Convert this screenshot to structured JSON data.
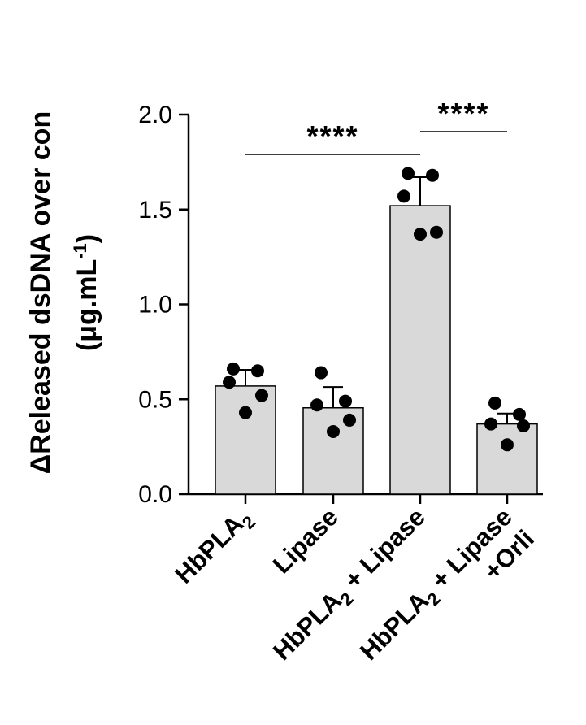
{
  "chart_data": {
    "type": "bar",
    "ylabel": {
      "line1": "ΔReleased dsDNA over con",
      "line2_prefix": "(μg.mL",
      "line2_superscript": "-1",
      "line2_suffix": ")"
    },
    "categories": [
      {
        "lines": [
          {
            "text": "HbPLA",
            "sub": "2",
            "after": ""
          }
        ]
      },
      {
        "lines": [
          {
            "text": "Lipase",
            "sub": "",
            "after": ""
          }
        ]
      },
      {
        "lines": [
          {
            "text": "HbPLA",
            "sub": "2",
            "after": " + Lipase"
          }
        ]
      },
      {
        "lines": [
          {
            "text": "HbPLA",
            "sub": "2",
            "after": " + Lipase"
          },
          {
            "text": "+Orli",
            "sub": "",
            "after": ""
          }
        ]
      }
    ],
    "values": [
      0.57,
      0.455,
      1.52,
      0.37
    ],
    "errors": [
      0.085,
      0.11,
      0.15,
      0.055
    ],
    "points": [
      [
        0.66,
        0.65,
        0.59,
        0.52,
        0.43
      ],
      [
        0.64,
        0.49,
        0.47,
        0.39,
        0.33
      ],
      [
        1.69,
        1.68,
        1.57,
        1.38,
        1.37
      ],
      [
        0.48,
        0.42,
        0.37,
        0.36,
        0.26
      ]
    ],
    "ylim": [
      0.0,
      2.0
    ],
    "yticks": [
      "0.0",
      "0.5",
      "1.0",
      "1.5",
      "2.0"
    ],
    "bar_color": "#d9d9d9",
    "significance": [
      {
        "from": 0,
        "to": 2,
        "label": "****",
        "y": 1.79
      },
      {
        "from": 2,
        "to": 3,
        "label": "****",
        "y": 1.91
      }
    ]
  }
}
